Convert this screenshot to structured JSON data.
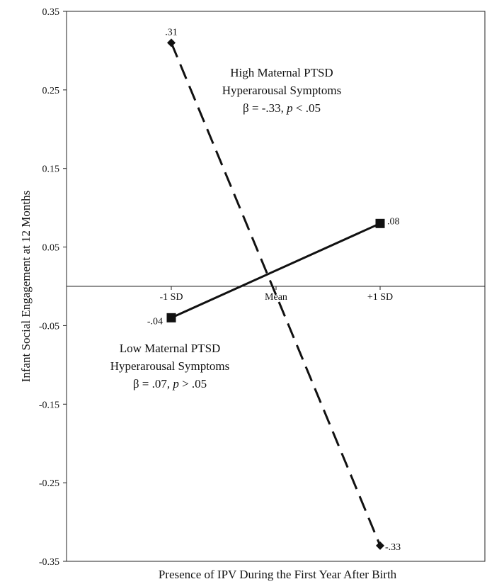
{
  "chart_data": {
    "type": "line",
    "title": "",
    "xlabel": "Presence of IPV During the First Year After Birth",
    "ylabel": "Infant Social Engagement at 12 Months",
    "categories": [
      "-1 SD",
      "Mean",
      "+1 SD"
    ],
    "ylim": [
      -0.35,
      0.35
    ],
    "yticks": [
      "0.35",
      "0.25",
      "0.15",
      "0.05",
      "-0.05",
      "-0.15",
      "-0.25",
      "-0.35"
    ],
    "grid": false,
    "series": [
      {
        "name": "High Maternal PTSD Hyperarousal Symptoms",
        "x": [
          "-1 SD",
          "+1 SD"
        ],
        "values": [
          0.31,
          -0.33
        ],
        "labels": [
          ".31",
          "-.33"
        ],
        "style": "dashed",
        "marker": "diamond",
        "color": "#111111"
      },
      {
        "name": "Low Maternal PTSD Hyperarousal Symptoms",
        "x": [
          "-1 SD",
          "+1 SD"
        ],
        "values": [
          -0.04,
          0.08
        ],
        "labels": [
          "-.04",
          ".08"
        ],
        "style": "solid",
        "marker": "square",
        "color": "#111111"
      }
    ],
    "annotations": {
      "high": {
        "line1": "High Maternal PTSD",
        "line2": "Hyperarousal Symptoms",
        "beta": "β = -.33, ",
        "p": "p",
        "rest": " < .05"
      },
      "low": {
        "line1": "Low Maternal PTSD",
        "line2": "Hyperarousal Symptoms",
        "beta": "β = .07, ",
        "p": "p",
        "rest": " > .05"
      }
    }
  }
}
